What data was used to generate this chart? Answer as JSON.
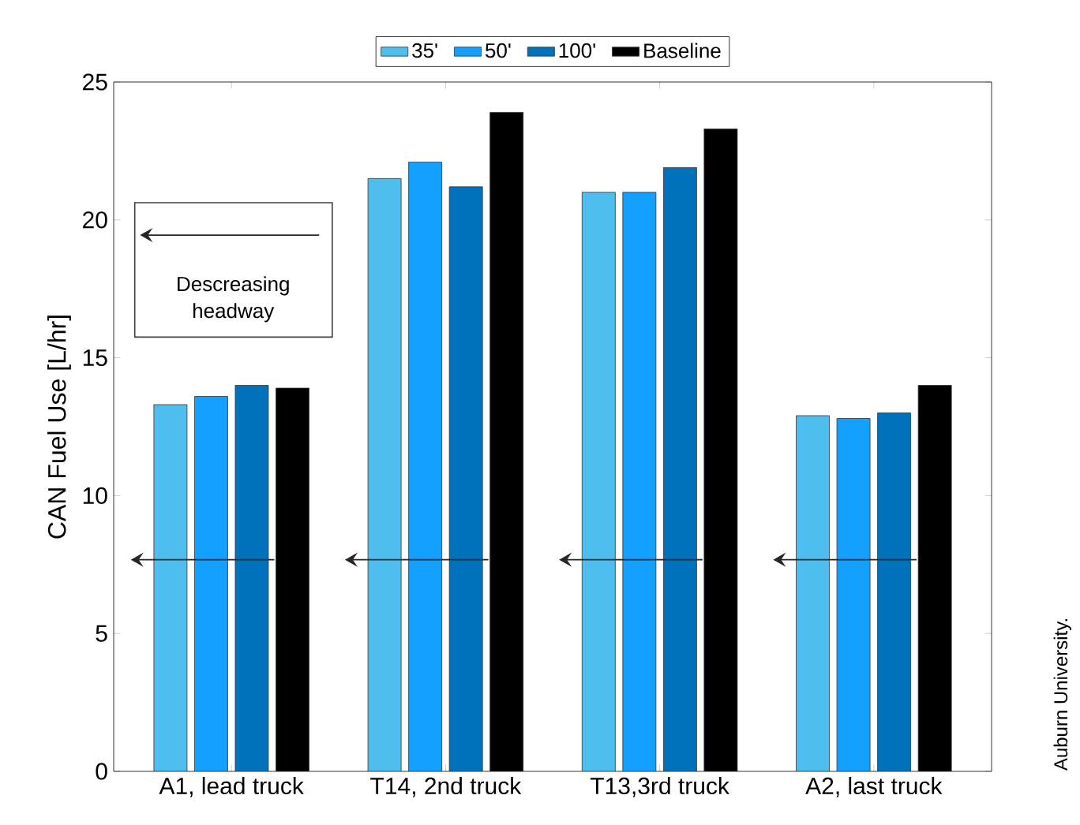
{
  "chart_data": {
    "type": "bar",
    "ylabel": "CAN Fuel Use [L/hr]",
    "categories": [
      "A1, lead truck",
      "T14, 2nd truck",
      "T13,3rd truck",
      "A2, last truck"
    ],
    "series": [
      {
        "name": "35'",
        "color": "#4dbeee",
        "values": [
          13.3,
          21.5,
          21.0,
          12.9
        ]
      },
      {
        "name": "50'",
        "color": "#14a0ff",
        "values": [
          13.6,
          22.1,
          21.0,
          12.8
        ]
      },
      {
        "name": "100'",
        "color": "#0072bd",
        "values": [
          14.0,
          21.2,
          21.9,
          13.0
        ]
      },
      {
        "name": "Baseline",
        "color": "#000000",
        "values": [
          13.9,
          23.9,
          23.3,
          14.0
        ]
      }
    ],
    "ylim": [
      0,
      25
    ],
    "yticks": [
      0,
      5,
      10,
      15,
      20,
      25
    ],
    "legend": "top",
    "annotations": [
      "Descreasing headway",
      "Auburn University."
    ]
  }
}
